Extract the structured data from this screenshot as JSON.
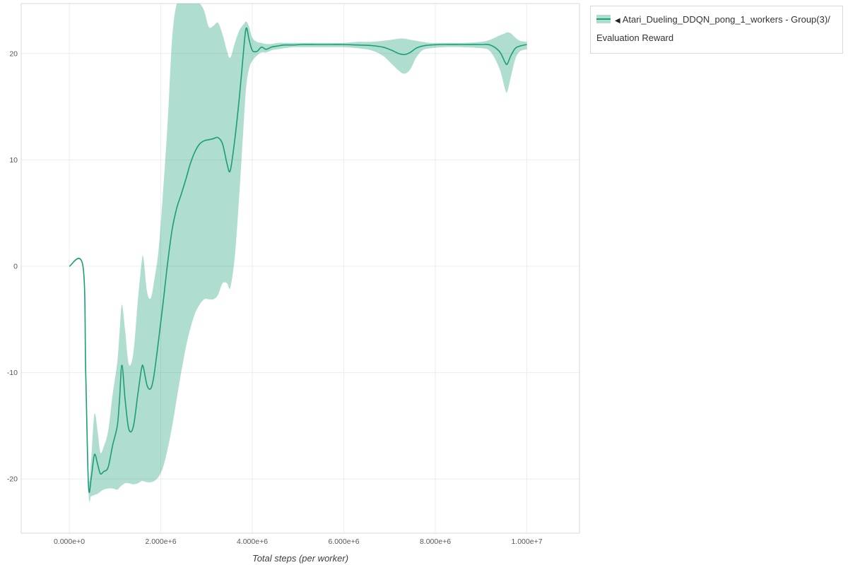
{
  "page": {
    "background": "#ffffff"
  },
  "legend": {
    "collapse_icon": "◀",
    "series_label": "Atari_Dueling_DDQN_pong_1_workers - Group(3)/Evaluation Reward"
  },
  "chart_data": {
    "type": "line",
    "title": "",
    "xlabel": "Total steps (per worker)",
    "ylabel": "",
    "xlim": [
      -1050000,
      11150000
    ],
    "ylim": [
      -25.1,
      24.7
    ],
    "grid": true,
    "legend_position": "top-right-outside",
    "colors": {
      "grid": "#ececec",
      "plot_border": "#d9d9d9",
      "tick_text": "#565656"
    },
    "x_ticks": [
      {
        "value": 0,
        "label": "0.000e+0"
      },
      {
        "value": 2000000,
        "label": "2.000e+6"
      },
      {
        "value": 4000000,
        "label": "4.000e+6"
      },
      {
        "value": 6000000,
        "label": "6.000e+6"
      },
      {
        "value": 8000000,
        "label": "8.000e+6"
      },
      {
        "value": 10000000,
        "label": "1.000e+7"
      }
    ],
    "y_ticks": [
      {
        "value": -20,
        "label": "-20"
      },
      {
        "value": -10,
        "label": "-10"
      },
      {
        "value": 0,
        "label": "0"
      },
      {
        "value": 10,
        "label": "10"
      },
      {
        "value": 20,
        "label": "20"
      }
    ],
    "series": [
      {
        "name": "Atari_Dueling_DDQN_pong_1_workers - Group(3)/Evaluation Reward",
        "color": "#1b9e77",
        "band_color": "rgba(27,158,119,0.35)",
        "x": [
          0,
          300000,
          360000,
          420000,
          480000,
          550000,
          620000,
          680000,
          750000,
          850000,
          950000,
          1050000,
          1100000,
          1150000,
          1220000,
          1300000,
          1400000,
          1500000,
          1580000,
          1620000,
          1700000,
          1780000,
          1850000,
          1950000,
          2050000,
          2150000,
          2250000,
          2350000,
          2450000,
          2550000,
          2650000,
          2750000,
          2850000,
          2950000,
          3050000,
          3150000,
          3250000,
          3350000,
          3450000,
          3520000,
          3620000,
          3720000,
          3820000,
          3870000,
          3930000,
          4000000,
          4100000,
          4200000,
          4300000,
          4420000,
          4550000,
          4700000,
          4900000,
          5100000,
          5400000,
          5700000,
          6000000,
          6300000,
          6600000,
          6850000,
          7050000,
          7200000,
          7320000,
          7450000,
          7580000,
          7720000,
          7900000,
          8200000,
          8600000,
          9000000,
          9200000,
          9400000,
          9520000,
          9570000,
          9650000,
          9750000,
          9850000,
          10000000
        ],
        "mean": [
          0,
          0,
          -10,
          -20.6,
          -19.9,
          -17.7,
          -18.6,
          -19.5,
          -19.3,
          -18.9,
          -16.8,
          -15.0,
          -12.5,
          -9.3,
          -12.5,
          -15.3,
          -15.1,
          -12.0,
          -9.6,
          -9.5,
          -11.2,
          -11.5,
          -10.3,
          -7.0,
          -3.5,
          0.3,
          3.5,
          5.5,
          6.8,
          8.2,
          9.7,
          10.8,
          11.5,
          11.8,
          11.9,
          12.0,
          12.1,
          11.5,
          9.6,
          9.0,
          12.0,
          16.0,
          20.8,
          22.4,
          21.3,
          20.3,
          20.2,
          20.6,
          20.4,
          20.6,
          20.7,
          20.8,
          20.8,
          20.85,
          20.85,
          20.85,
          20.85,
          20.8,
          20.75,
          20.6,
          20.3,
          20.0,
          19.9,
          20.1,
          20.5,
          20.7,
          20.8,
          20.85,
          20.85,
          20.85,
          20.8,
          20.2,
          19.2,
          19.0,
          19.8,
          20.5,
          20.7,
          20.85
        ],
        "lower": [
          0,
          0,
          -11,
          -21.3,
          -21.6,
          -21.5,
          -21.4,
          -21.2,
          -21.0,
          -20.9,
          -20.9,
          -21.0,
          -20.8,
          -20.6,
          -20.4,
          -20.4,
          -20.5,
          -20.4,
          -20.2,
          -20.2,
          -20.3,
          -20.3,
          -20.2,
          -19.8,
          -18.9,
          -17.2,
          -15.0,
          -12.4,
          -9.9,
          -7.6,
          -5.8,
          -4.4,
          -3.6,
          -3.1,
          -3.1,
          -3.1,
          -2.7,
          -1.6,
          -1.6,
          -2.0,
          1.0,
          7.0,
          14.0,
          17.0,
          18.6,
          19.3,
          19.8,
          20.1,
          20.1,
          20.3,
          20.4,
          20.5,
          20.6,
          20.6,
          20.6,
          20.6,
          20.6,
          20.5,
          20.3,
          19.8,
          19.0,
          18.4,
          18.1,
          18.5,
          19.6,
          20.3,
          20.5,
          20.6,
          20.6,
          20.5,
          20.2,
          18.6,
          16.7,
          16.4,
          17.8,
          19.5,
          20.2,
          20.4
        ],
        "upper": [
          0,
          0,
          -9,
          -19.8,
          -18.0,
          -13.9,
          -15.5,
          -17.5,
          -17.0,
          -15.5,
          -12.0,
          -9.0,
          -6.2,
          -3.6,
          -6.0,
          -9.2,
          -8.2,
          -3.2,
          0.3,
          0.8,
          -2.4,
          -3.0,
          -1.5,
          1.5,
          7.0,
          13.5,
          21.5,
          24.7,
          24.7,
          24.7,
          24.7,
          24.7,
          24.7,
          24.0,
          22.5,
          22.6,
          22.9,
          21.8,
          20.2,
          19.6,
          21.0,
          22.2,
          22.8,
          23.0,
          22.5,
          21.5,
          21.1,
          21.0,
          20.9,
          20.9,
          21.0,
          21.0,
          21.0,
          21.0,
          21.0,
          21.0,
          21.0,
          21.1,
          21.1,
          21.2,
          21.3,
          21.4,
          21.4,
          21.3,
          21.2,
          21.1,
          21.0,
          21.0,
          21.0,
          21.1,
          21.3,
          21.7,
          21.9,
          22.0,
          21.9,
          21.5,
          21.2,
          21.1
        ]
      }
    ]
  }
}
